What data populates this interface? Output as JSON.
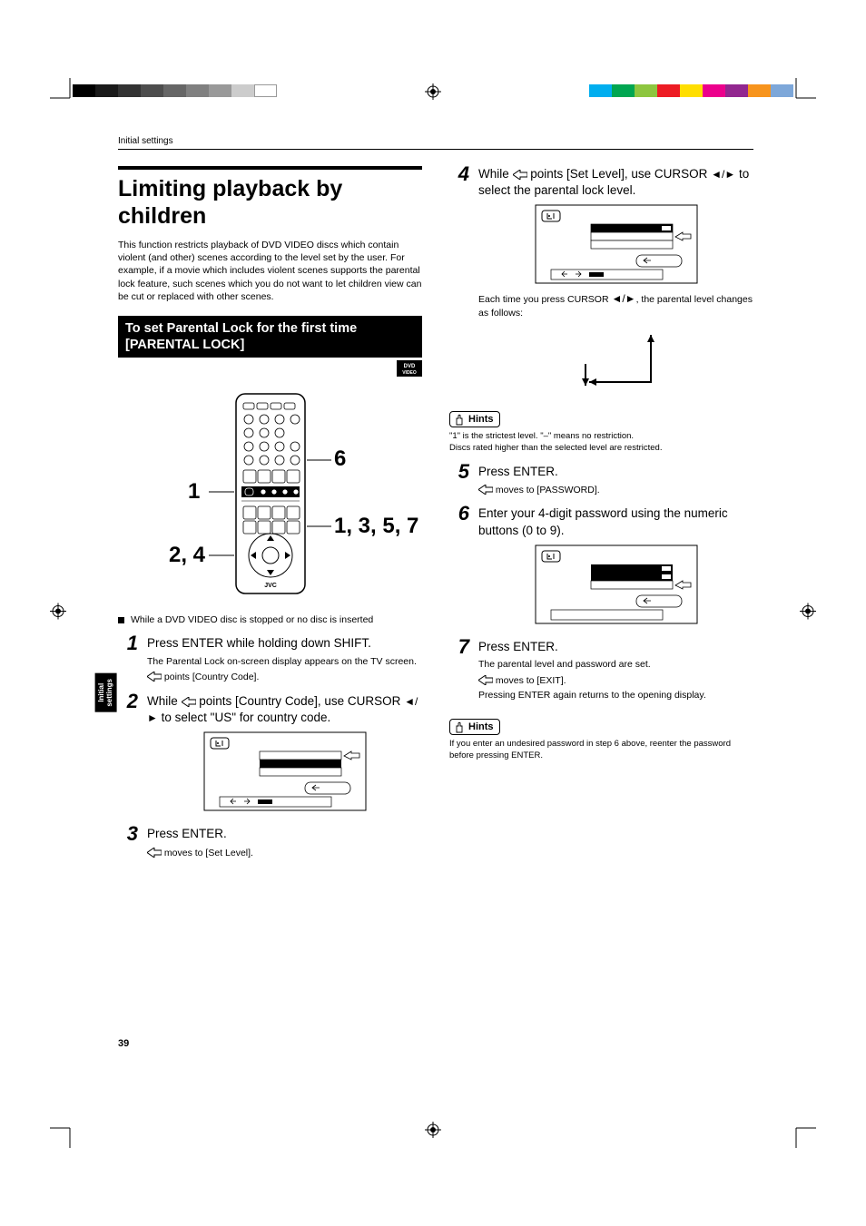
{
  "breadcrumb": "Initial settings",
  "title": "Limiting playback by children",
  "intro": "This function restricts playback of DVD VIDEO discs which contain violent (and other) scenes according to the level set by the user. For example, if a movie which includes violent scenes supports the parental lock feature, such scenes which you do not want to let children view can be cut or replaced with other scenes.",
  "section_bar": "To set Parental Lock for the first time [PARENTAL LOCK]",
  "dvd_badge": "DVD VIDEO",
  "remote_callouts": {
    "c6": "6",
    "c1": "1",
    "c1357": "1, 3, 5, 7",
    "c24": "2, 4"
  },
  "bullet_note": "While a DVD VIDEO disc is stopped or no disc is inserted",
  "steps": {
    "s1": {
      "head": "Press ENTER while holding down SHIFT.",
      "sub1": "The Parental Lock on-screen display appears on the TV screen.",
      "sub2": " points [Country Code]."
    },
    "s2": {
      "head_pre": "While ",
      "head_mid": " points [Country Code], use CURSOR ",
      "head_post": " to select \"US\" for country code."
    },
    "s3": {
      "head": "Press ENTER.",
      "sub1": " moves to [Set Level]."
    },
    "s4": {
      "head_pre": "While ",
      "head_mid": " points [Set Level], use CURSOR ",
      "head_post": " to select the parental lock level.",
      "sub1_pre": "Each time you press  CURSOR ",
      "sub1_post": ", the parental level changes as follows:"
    },
    "s5": {
      "head": "Press ENTER.",
      "sub1": " moves to [PASSWORD]."
    },
    "s6": {
      "head": "Enter your 4-digit password using the numeric buttons (0 to 9)."
    },
    "s7": {
      "head": "Press ENTER.",
      "sub1": "The parental level and password are set.",
      "sub2": " moves to [EXIT].",
      "sub3": "Pressing ENTER again returns to the opening display."
    }
  },
  "hints1": {
    "label": "Hints",
    "line1": "\"1\" is the strictest level. \"–\" means no restriction.",
    "line2": "Discs rated higher than the selected level are restricted."
  },
  "hints2": {
    "label": "Hints",
    "line1": "If you enter an undesired password in step 6 above, reenter the password before pressing ENTER."
  },
  "side_tab": "Initial\nsettings",
  "page_num": "39",
  "color_bar_left": [
    "#000000",
    "#1a1a1a",
    "#333333",
    "#4d4d4d",
    "#666666",
    "#808080",
    "#999999",
    "#cccccc",
    "#ffffff"
  ],
  "color_bar_right": [
    "#00aeef",
    "#00a651",
    "#8dc63f",
    "#ed1c24",
    "#ffde00",
    "#ec008c",
    "#92278f",
    "#f7941d",
    "#7da7d9"
  ]
}
